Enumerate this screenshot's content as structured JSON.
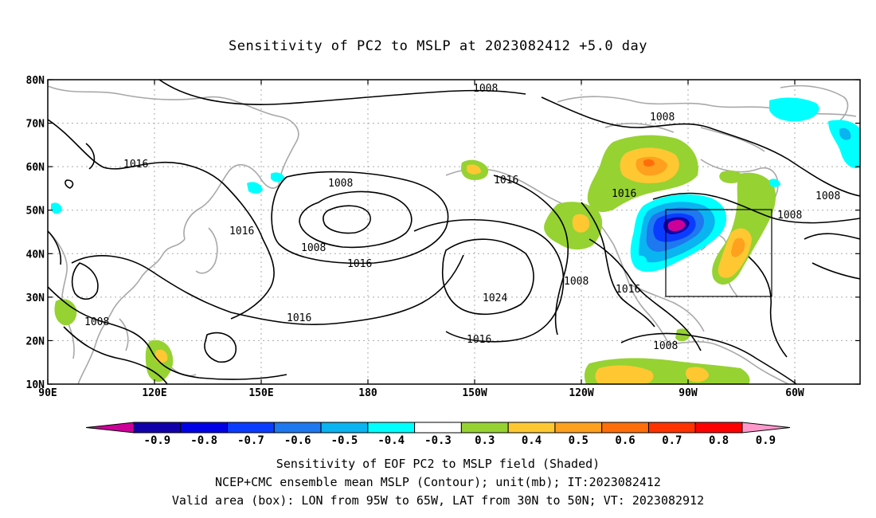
{
  "title": "Sensitivity of PC2 to MSLP at 2023082412 +5.0 day",
  "map": {
    "lat_ticks": [
      "80N",
      "70N",
      "60N",
      "50N",
      "40N",
      "30N",
      "20N",
      "10N"
    ],
    "lon_ticks": [
      "90E",
      "120E",
      "150E",
      "180",
      "150W",
      "120W",
      "90W",
      "60W"
    ],
    "contour_labels": [
      "1008",
      "1008",
      "1016",
      "1008",
      "1016",
      "1016",
      "1008",
      "1016",
      "1024",
      "1016",
      "1016",
      "1008",
      "1016",
      "1016",
      "1008",
      "1008",
      "1008",
      "1008"
    ],
    "box_label": "Valid area (box)"
  },
  "colorbar": {
    "labels": [
      "-0.9",
      "-0.8",
      "-0.7",
      "-0.6",
      "-0.5",
      "-0.4",
      "-0.3",
      "0.3",
      "0.4",
      "0.5",
      "0.6",
      "0.7",
      "0.8",
      "0.9"
    ],
    "colors": [
      "#1100aa",
      "#0000e6",
      "#0a3cff",
      "#1e78f0",
      "#0ab4f0",
      "#00ffff",
      "#ffffff",
      "#96d232",
      "#ffc832",
      "#ffa01e",
      "#ff6e0a",
      "#ff3200",
      "#ff0000"
    ],
    "low_tip": "#cc0099",
    "high_tip": "#ff99cc"
  },
  "captions": {
    "line1": "Sensitivity of EOF PC2 to MSLP field (Shaded)",
    "line2": "NCEP+CMC ensemble mean MSLP (Contour); unit(mb); IT:2023082412",
    "line3": "Valid area (box): LON from 95W to 65W, LAT from 30N to 50N; VT: 2023082912"
  }
}
